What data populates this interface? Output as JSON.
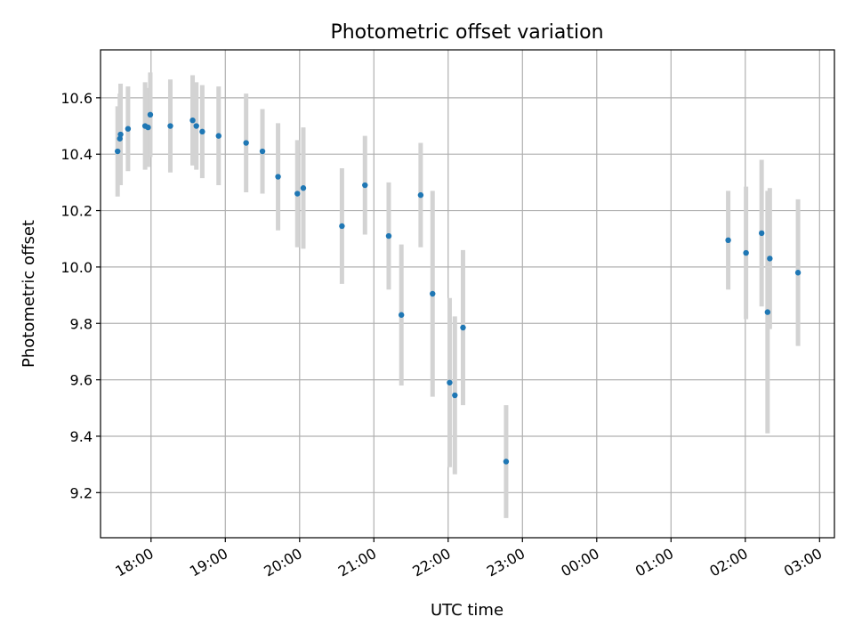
{
  "chart_data": {
    "type": "scatter",
    "title": "Photometric offset variation",
    "xlabel": "UTC time",
    "ylabel": "Photometric offset",
    "grid": true,
    "xlim_hours": [
      17.32,
      27.2
    ],
    "ylim": [
      9.04,
      10.77
    ],
    "x_ticks": [
      {
        "hours": 18,
        "label": "18:00"
      },
      {
        "hours": 19,
        "label": "19:00"
      },
      {
        "hours": 20,
        "label": "20:00"
      },
      {
        "hours": 21,
        "label": "21:00"
      },
      {
        "hours": 22,
        "label": "22:00"
      },
      {
        "hours": 23,
        "label": "23:00"
      },
      {
        "hours": 24,
        "label": "00:00"
      },
      {
        "hours": 25,
        "label": "01:00"
      },
      {
        "hours": 26,
        "label": "02:00"
      },
      {
        "hours": 27,
        "label": "03:00"
      }
    ],
    "y_ticks": [
      {
        "value": 9.2,
        "label": "9.2"
      },
      {
        "value": 9.4,
        "label": "9.4"
      },
      {
        "value": 9.6,
        "label": "9.6"
      },
      {
        "value": 9.8,
        "label": "9.8"
      },
      {
        "value": 10.0,
        "label": "10.0"
      },
      {
        "value": 10.2,
        "label": "10.2"
      },
      {
        "value": 10.4,
        "label": "10.4"
      },
      {
        "value": 10.6,
        "label": "10.6"
      }
    ],
    "series": [
      {
        "color": "#1f77b4",
        "error_color": "#d3d3d3",
        "points": [
          {
            "time": "17:33",
            "hours": 17.55,
            "y": 10.41,
            "err": 0.16
          },
          {
            "time": "17:35",
            "hours": 17.58,
            "y": 10.455,
            "err": 0.16
          },
          {
            "time": "17:35",
            "hours": 17.59,
            "y": 10.47,
            "err": 0.18
          },
          {
            "time": "17:41",
            "hours": 17.69,
            "y": 10.49,
            "err": 0.15
          },
          {
            "time": "17:55",
            "hours": 17.92,
            "y": 10.5,
            "err": 0.155
          },
          {
            "time": "17:57",
            "hours": 17.96,
            "y": 10.495,
            "err": 0.14
          },
          {
            "time": "17:59",
            "hours": 17.99,
            "y": 10.54,
            "err": 0.15
          },
          {
            "time": "18:16",
            "hours": 18.26,
            "y": 10.5,
            "err": 0.165
          },
          {
            "time": "18:34",
            "hours": 18.56,
            "y": 10.52,
            "err": 0.16
          },
          {
            "time": "18:36",
            "hours": 18.61,
            "y": 10.5,
            "err": 0.155
          },
          {
            "time": "18:41",
            "hours": 18.69,
            "y": 10.48,
            "err": 0.165
          },
          {
            "time": "18:55",
            "hours": 18.91,
            "y": 10.465,
            "err": 0.175
          },
          {
            "time": "19:17",
            "hours": 19.28,
            "y": 10.44,
            "err": 0.175
          },
          {
            "time": "19:30",
            "hours": 19.5,
            "y": 10.41,
            "err": 0.15
          },
          {
            "time": "19:43",
            "hours": 19.71,
            "y": 10.32,
            "err": 0.19
          },
          {
            "time": "19:58",
            "hours": 19.97,
            "y": 10.26,
            "err": 0.19
          },
          {
            "time": "20:03",
            "hours": 20.05,
            "y": 10.28,
            "err": 0.215
          },
          {
            "time": "20:34",
            "hours": 20.57,
            "y": 10.145,
            "err": 0.205
          },
          {
            "time": "20:53",
            "hours": 20.88,
            "y": 10.29,
            "err": 0.175
          },
          {
            "time": "21:12",
            "hours": 21.2,
            "y": 10.11,
            "err": 0.19
          },
          {
            "time": "21:22",
            "hours": 21.37,
            "y": 9.83,
            "err": 0.25
          },
          {
            "time": "21:38",
            "hours": 21.63,
            "y": 10.255,
            "err": 0.185
          },
          {
            "time": "21:47",
            "hours": 21.79,
            "y": 9.905,
            "err": 0.365
          },
          {
            "time": "22:01",
            "hours": 22.02,
            "y": 9.59,
            "err": 0.3
          },
          {
            "time": "22:05",
            "hours": 22.09,
            "y": 9.545,
            "err": 0.28
          },
          {
            "time": "22:12",
            "hours": 22.2,
            "y": 9.785,
            "err": 0.275
          },
          {
            "time": "22:47",
            "hours": 22.78,
            "y": 9.31,
            "err": 0.2
          },
          {
            "time": "01:46",
            "hours": 25.77,
            "y": 10.095,
            "err": 0.175
          },
          {
            "time": "02:01",
            "hours": 26.01,
            "y": 10.05,
            "err": 0.235
          },
          {
            "time": "02:13",
            "hours": 26.22,
            "y": 10.12,
            "err": 0.26
          },
          {
            "time": "02:18",
            "hours": 26.3,
            "y": 9.84,
            "err": 0.43
          },
          {
            "time": "02:20",
            "hours": 26.33,
            "y": 10.03,
            "err": 0.25
          },
          {
            "time": "02:43",
            "hours": 26.71,
            "y": 9.98,
            "err": 0.26
          }
        ]
      }
    ]
  }
}
